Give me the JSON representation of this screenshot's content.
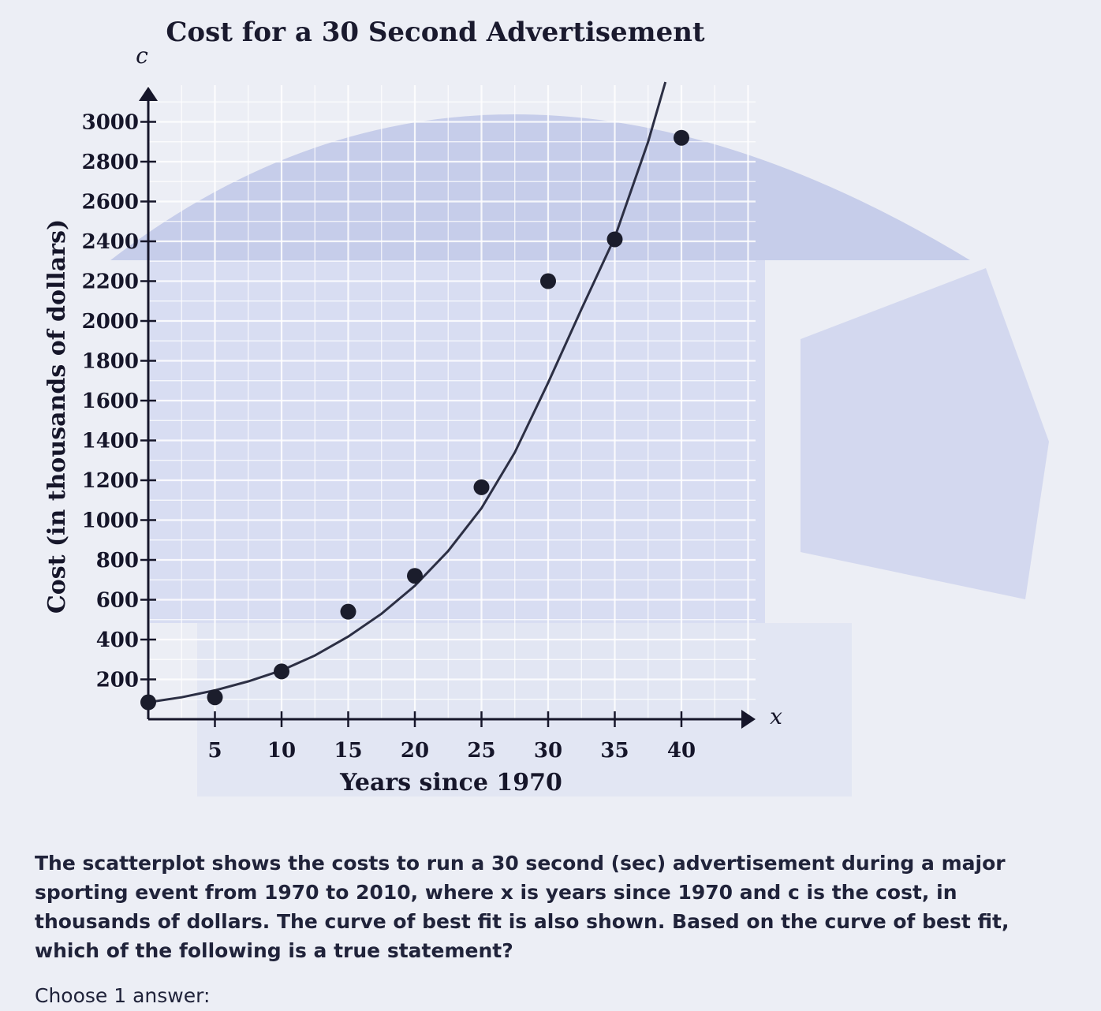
{
  "chart_data": {
    "type": "scatter",
    "title": "Cost for a 30 Second Advertisement",
    "xlabel": "Years since 1970",
    "ylabel": "Cost (in thousands of dollars)",
    "x_var": "x",
    "y_var": "c",
    "xlim": [
      0,
      45
    ],
    "ylim": [
      0,
      3100
    ],
    "x_ticks": [
      5,
      10,
      15,
      20,
      25,
      30,
      35,
      40
    ],
    "y_ticks": [
      200,
      400,
      600,
      800,
      1000,
      1200,
      1400,
      1600,
      1800,
      2000,
      2200,
      2400,
      2600,
      2800,
      3000
    ],
    "grid": true,
    "points": [
      {
        "x": 0,
        "y": 85
      },
      {
        "x": 5,
        "y": 110
      },
      {
        "x": 10,
        "y": 240
      },
      {
        "x": 15,
        "y": 540
      },
      {
        "x": 20,
        "y": 720
      },
      {
        "x": 25,
        "y": 1165
      },
      {
        "x": 30,
        "y": 2200
      },
      {
        "x": 35,
        "y": 2410
      },
      {
        "x": 40,
        "y": 2920
      }
    ],
    "curve_of_best_fit": {
      "x": [
        0,
        2.5,
        5,
        7.5,
        10,
        12.5,
        15,
        17.5,
        20,
        22.5,
        25,
        27.5,
        30,
        32.5,
        35,
        37.5,
        38.8
      ],
      "y": [
        85,
        110,
        145,
        190,
        245,
        320,
        415,
        530,
        670,
        845,
        1060,
        1340,
        1690,
        2060,
        2420,
        2900,
        3200
      ]
    },
    "colors": {
      "points": "#1b1d2c",
      "curve": "#2c2f44",
      "grid": "#ffffff",
      "axis": "#16162a"
    }
  },
  "question": {
    "text": "The scatterplot shows the costs to run a 30 second (sec) advertisement during a major sporting event from 1970 to 2010, where x is years since 1970 and c is the cost, in thousands of dollars. The curve of best fit is also shown. Based on the curve of best fit, which of the following is a true statement?",
    "prompt": "Choose 1 answer:"
  }
}
